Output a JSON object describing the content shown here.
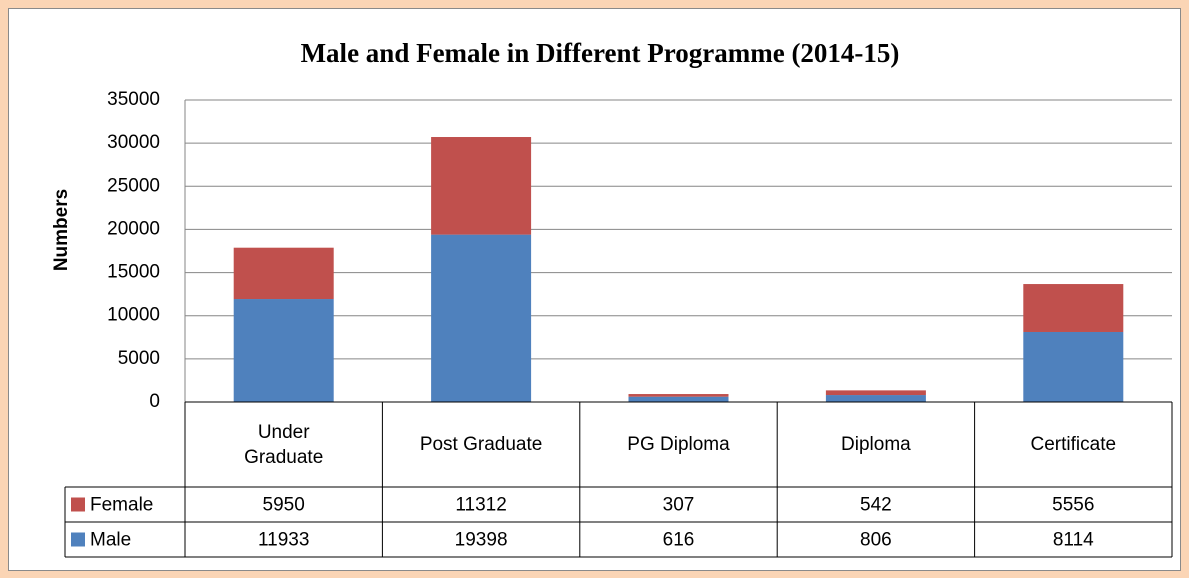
{
  "chart_data": {
    "type": "stacked_bar",
    "title": "Male and Female in Different Programme (2014-15)",
    "y_label": "Numbers",
    "categories": [
      "Under Graduate",
      "Post Graduate",
      "PG Diploma",
      "Diploma",
      "Certificate"
    ],
    "series": [
      {
        "name": "Female",
        "color": "#c0504d",
        "values": [
          5950,
          11312,
          307,
          542,
          5556
        ]
      },
      {
        "name": "Male",
        "color": "#4f81bd",
        "values": [
          11933,
          19398,
          616,
          806,
          8114
        ]
      }
    ],
    "ylim": [
      0,
      35000
    ],
    "yticks": [
      0,
      5000,
      10000,
      15000,
      20000,
      25000,
      30000,
      35000
    ],
    "grid": true
  }
}
